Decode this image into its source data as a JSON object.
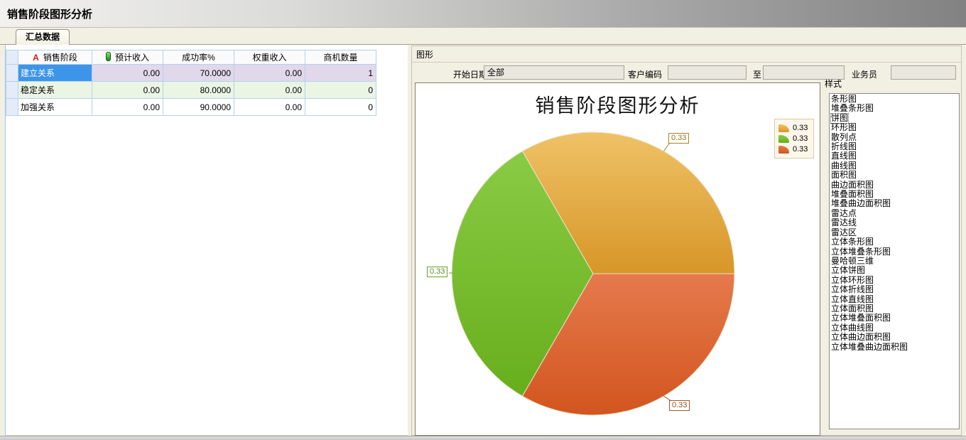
{
  "window": {
    "title": "销售阶段图形分析"
  },
  "tabs": [
    {
      "label": "汇总数据",
      "active": true
    }
  ],
  "table": {
    "columns": [
      "销售阶段",
      "预计收入",
      "成功率%",
      "权重收入",
      "商机数量"
    ],
    "rows": [
      {
        "stage": "建立关系",
        "expected": "0.00",
        "success": "70.0000",
        "weighted": "0.00",
        "count": "1",
        "selected": true
      },
      {
        "stage": "稳定关系",
        "expected": "0.00",
        "success": "80.0000",
        "weighted": "0.00",
        "count": "0",
        "selected": false
      },
      {
        "stage": "加强关系",
        "expected": "0.00",
        "success": "90.0000",
        "weighted": "0.00",
        "count": "0",
        "selected": false
      }
    ]
  },
  "graph_panel": {
    "group_label": "图形",
    "filters": [
      {
        "label": "开始日期",
        "value": "全部"
      },
      {
        "label": "客户编码",
        "value": ""
      },
      {
        "label": "至",
        "value": ""
      },
      {
        "label": "业务员",
        "value": ""
      }
    ],
    "style_group": {
      "label": "样式",
      "selected_index": 2,
      "items": [
        "条形图",
        "堆叠条形图",
        "饼图",
        "环形图",
        "散列点",
        "折线图",
        "直线图",
        "曲线图",
        "面积图",
        "曲边面积图",
        "堆叠面积图",
        "堆叠曲边面积图",
        "雷达点",
        "雷达线",
        "雷达区",
        "立体条形图",
        "立体堆叠条形图",
        "曼哈顿三维",
        "立体饼图",
        "立体环形图",
        "立体折线图",
        "立体直线图",
        "立体面积图",
        "立体堆叠面积图",
        "立体曲线图",
        "立体曲边面积图",
        "立体堆叠曲边面积图"
      ]
    }
  },
  "chart_data": {
    "type": "pie",
    "title": "销售阶段图形分析",
    "values": [
      0.33,
      0.33,
      0.33
    ],
    "labels": [
      "0.33",
      "0.33",
      "0.33"
    ],
    "legend_entries": [
      "0.33",
      "0.33",
      "0.33"
    ],
    "legend_position": "top-right",
    "start_angle_deg": 0,
    "direction": "counterclockwise",
    "colors": [
      {
        "base": "#E8B14F",
        "light": "#EFC266",
        "dark": "#D79628"
      },
      {
        "base": "#76BC28",
        "light": "#8ACB45",
        "dark": "#67AE1C"
      },
      {
        "base": "#DC622D",
        "light": "#E57A4D",
        "dark": "#D2551E"
      }
    ]
  }
}
